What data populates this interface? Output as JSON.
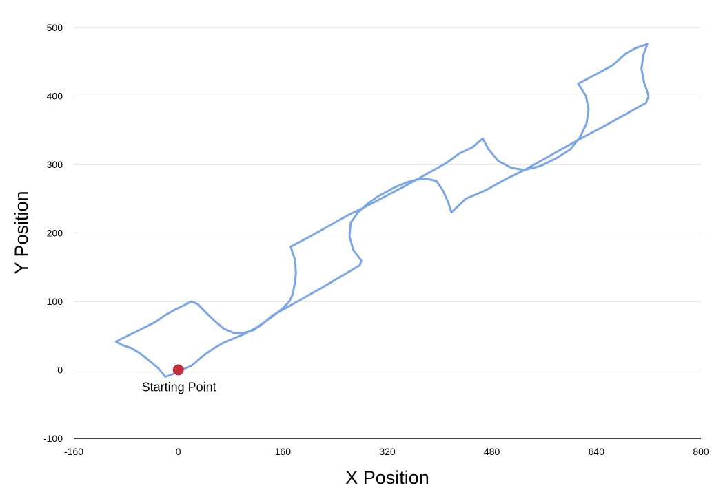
{
  "chart_data": {
    "type": "line",
    "title": "",
    "xlabel": "X Position",
    "ylabel": "Y Position",
    "xlim": [
      -160,
      800
    ],
    "ylim": [
      -100,
      500
    ],
    "x_ticks": [
      -160,
      0,
      160,
      320,
      480,
      640,
      800
    ],
    "y_ticks": [
      -100,
      0,
      100,
      200,
      300,
      400,
      500
    ],
    "grid": "horizontal",
    "series_color": "#7aa6e8",
    "marker_color": "#c0303a",
    "series": [
      {
        "points": [
          [
            0,
            0
          ],
          [
            10,
            2
          ],
          [
            20,
            6
          ],
          [
            30,
            14
          ],
          [
            40,
            22
          ],
          [
            55,
            32
          ],
          [
            70,
            40
          ],
          [
            85,
            46
          ],
          [
            100,
            52
          ],
          [
            120,
            62
          ],
          [
            140,
            75
          ],
          [
            160,
            90
          ],
          [
            170,
            100
          ],
          [
            175,
            110
          ],
          [
            178,
            125
          ],
          [
            180,
            140
          ],
          [
            179,
            160
          ],
          [
            172,
            180
          ],
          [
            200,
            194
          ],
          [
            230,
            210
          ],
          [
            260,
            226
          ],
          [
            290,
            240
          ],
          [
            320,
            255
          ],
          [
            350,
            270
          ],
          [
            380,
            286
          ],
          [
            410,
            302
          ],
          [
            430,
            316
          ],
          [
            450,
            325
          ],
          [
            466,
            338
          ],
          [
            475,
            322
          ],
          [
            490,
            305
          ],
          [
            510,
            295
          ],
          [
            530,
            292
          ],
          [
            555,
            298
          ],
          [
            580,
            310
          ],
          [
            600,
            322
          ],
          [
            615,
            340
          ],
          [
            625,
            360
          ],
          [
            628,
            380
          ],
          [
            624,
            400
          ],
          [
            612,
            418
          ],
          [
            640,
            432
          ],
          [
            665,
            445
          ],
          [
            685,
            462
          ],
          [
            700,
            470
          ],
          [
            718,
            476
          ],
          [
            712,
            460
          ],
          [
            709,
            440
          ],
          [
            713,
            420
          ],
          [
            720,
            400
          ],
          [
            716,
            390
          ],
          [
            680,
            371
          ],
          [
            650,
            355
          ],
          [
            620,
            340
          ],
          [
            590,
            324
          ],
          [
            560,
            308
          ],
          [
            530,
            292
          ],
          [
            500,
            278
          ],
          [
            470,
            262
          ],
          [
            440,
            250
          ],
          [
            418,
            230
          ],
          [
            413,
            245
          ],
          [
            405,
            262
          ],
          [
            395,
            276
          ],
          [
            380,
            279
          ],
          [
            365,
            278
          ],
          [
            350,
            274
          ],
          [
            330,
            266
          ],
          [
            305,
            253
          ],
          [
            290,
            243
          ],
          [
            275,
            230
          ],
          [
            264,
            215
          ],
          [
            262,
            195
          ],
          [
            268,
            175
          ],
          [
            280,
            160
          ],
          [
            278,
            153
          ],
          [
            250,
            137
          ],
          [
            220,
            120
          ],
          [
            190,
            104
          ],
          [
            160,
            88
          ],
          [
            145,
            80
          ],
          [
            130,
            68
          ],
          [
            115,
            58
          ],
          [
            100,
            54
          ],
          [
            85,
            54
          ],
          [
            70,
            60
          ],
          [
            55,
            72
          ],
          [
            40,
            86
          ],
          [
            30,
            96
          ],
          [
            20,
            100
          ],
          [
            8,
            94
          ],
          [
            -5,
            88
          ],
          [
            -20,
            80
          ],
          [
            -35,
            70
          ],
          [
            -60,
            58
          ],
          [
            -90,
            44
          ],
          [
            -95,
            41
          ],
          [
            -85,
            36
          ],
          [
            -72,
            32
          ],
          [
            -60,
            25
          ],
          [
            -45,
            14
          ],
          [
            -30,
            2
          ],
          [
            -20,
            -10
          ],
          [
            -8,
            -6
          ],
          [
            0,
            0
          ]
        ]
      }
    ],
    "annotations": [
      {
        "label": "Starting Point",
        "x": 0,
        "y": 0
      }
    ]
  }
}
